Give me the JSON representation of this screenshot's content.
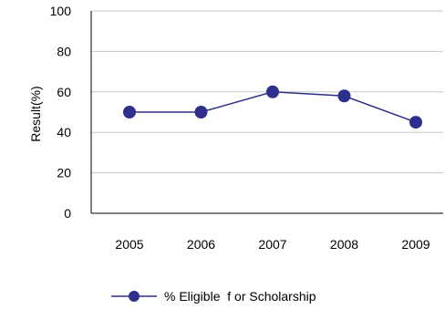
{
  "chart_data": {
    "type": "line",
    "categories": [
      "2005",
      "2006",
      "2007",
      "2008",
      "2009"
    ],
    "series": [
      {
        "name": "% Eligible  f or Scholarship",
        "values": [
          50,
          50,
          60,
          58,
          45
        ],
        "color": "#2e2e8c"
      }
    ],
    "ylabel": "Result(%)",
    "ylim": [
      0,
      100
    ],
    "yticks": [
      "0",
      "20",
      "40",
      "60",
      "80",
      "100"
    ],
    "grid": true,
    "legend_position": "bottom"
  }
}
